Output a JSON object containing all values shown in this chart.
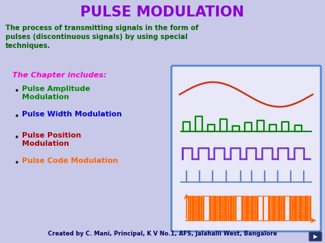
{
  "title": "PULSE MODULATION",
  "title_color": "#8800cc",
  "bg_color": "#c8c8e8",
  "description": "The process of transmitting signals in the form of\npulses (discontinuous signals) by using special\ntechniques.",
  "desc_color": "#006600",
  "chapter_heading": "The Chapter includes:",
  "chapter_color": "#ff00cc",
  "bullets": [
    {
      "text": "Pulse Amplitude\nModulation",
      "color": "#008800"
    },
    {
      "text": "Pulse Width Modulation",
      "color": "#0000cc"
    },
    {
      "text": "Pulse Position\nModulation",
      "color": "#aa0000"
    },
    {
      "text": "Pulse Code Modulation",
      "color": "#ff6600"
    }
  ],
  "footer": "Created by C. Mani, Principal, K V No.1, AFS, Jalahalli West, Bangalore",
  "footer_color": "#000066",
  "box_edge_color": "#5588cc",
  "signal_colors": [
    "#cc3311",
    "#008800",
    "#7733cc",
    "#6688cc",
    "#ff6600"
  ],
  "figw": 4.74,
  "figh": 3.55,
  "dpi": 100
}
